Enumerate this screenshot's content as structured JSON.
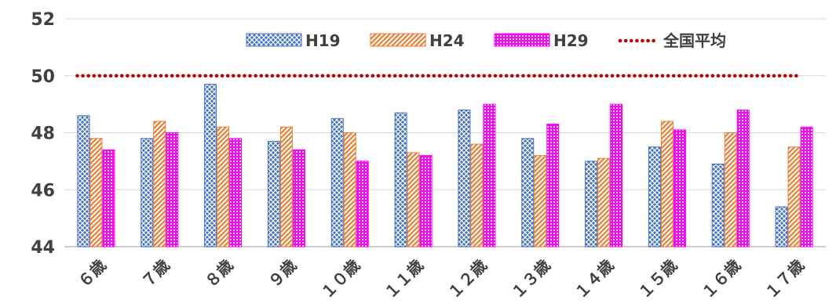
{
  "chart_data": {
    "type": "bar",
    "categories": [
      "６歳",
      "７歳",
      "８歳",
      "９歳",
      "１０歳",
      "１１歳",
      "１２歳",
      "１３歳",
      "１４歳",
      "１５歳",
      "１６歳",
      "１７歳"
    ],
    "series": [
      {
        "name": "H19",
        "values": [
          48.6,
          47.8,
          49.7,
          47.7,
          48.5,
          48.7,
          48.8,
          47.8,
          47.0,
          47.5,
          46.9,
          45.4
        ],
        "color": "#4472C4",
        "pattern": "crosshatch"
      },
      {
        "name": "H24",
        "values": [
          47.8,
          48.4,
          48.2,
          48.2,
          48.0,
          47.3,
          47.6,
          47.2,
          47.1,
          48.4,
          48.0,
          47.5
        ],
        "color": "#ED7D31",
        "pattern": "diagonal"
      },
      {
        "name": "H29",
        "values": [
          47.4,
          48.0,
          47.8,
          47.4,
          47.0,
          47.2,
          49.0,
          48.3,
          49.0,
          48.1,
          48.8,
          48.2
        ],
        "color": "#FF00FF",
        "pattern": "dots"
      }
    ],
    "reference_line": {
      "name": "全国平均",
      "value": 50,
      "color": "#C00000",
      "style": "dotted"
    },
    "ylim": [
      44,
      52
    ],
    "yticks": [
      44,
      46,
      48,
      50,
      52
    ],
    "grid": true,
    "legend_position": "top"
  }
}
